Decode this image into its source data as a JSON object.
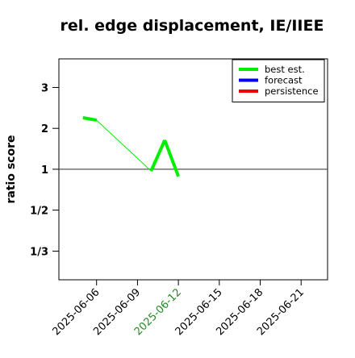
{
  "chart_data": {
    "type": "line",
    "title": "rel. edge displacement, IE/IIEE",
    "y_label": "ratio score",
    "yscale": "symmetric-ratio",
    "x": [
      "2025-06-05",
      "2025-06-06",
      "2025-06-10",
      "2025-06-11",
      "2025-06-12"
    ],
    "series": [
      {
        "name": "best est.",
        "color": "#00ee00",
        "values": [
          2.26,
          2.2,
          0.96,
          1.71,
          0.85
        ]
      },
      {
        "name": "forecast",
        "color": "#0000ee",
        "values": [
          null,
          null,
          null,
          null,
          null
        ]
      },
      {
        "name": "persistence",
        "color": "#ee0000",
        "values": [
          null,
          null,
          null,
          null,
          null
        ]
      }
    ],
    "xlim": [
      "2025-06-03",
      "2025-06-23"
    ],
    "xticks": [
      "2025-06-06",
      "2025-06-09",
      "2025-06-12",
      "2025-06-15",
      "2025-06-18",
      "2025-06-21"
    ],
    "highlight_xtick_index": 2,
    "highlight_color": "#228b22",
    "ylim": [
      0.27,
      3.7
    ],
    "yticks": [
      3,
      2,
      1,
      {
        "value": 0.5,
        "label": "1/2"
      },
      {
        "value": 0.333,
        "label": "1/3"
      }
    ],
    "reference_line": 1,
    "legend": "top-right"
  }
}
